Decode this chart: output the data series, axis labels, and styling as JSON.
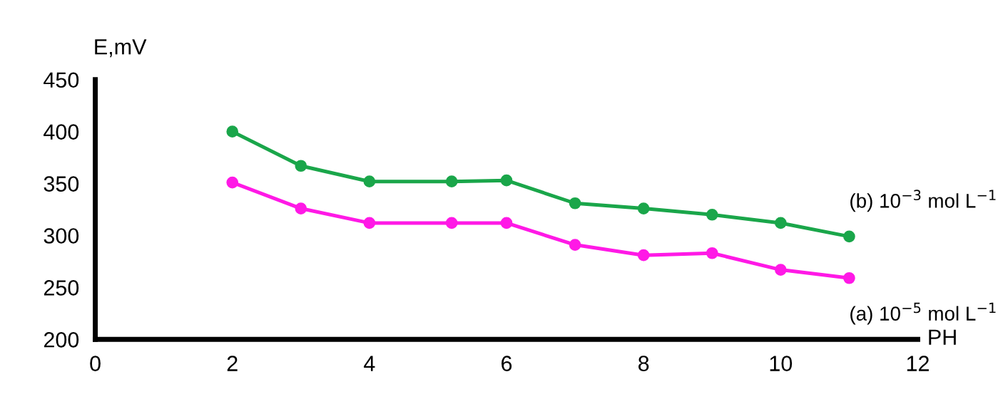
{
  "chart_data": {
    "type": "line",
    "xlabel": "PH",
    "ylabel": "E,mV",
    "xlim": [
      0,
      12
    ],
    "xticks": [
      0,
      2,
      4,
      6,
      8,
      10,
      12
    ],
    "ylim": [
      200,
      450
    ],
    "yticks": [
      200,
      250,
      300,
      350,
      400,
      450
    ],
    "grid": false,
    "legend": false,
    "marker": "circle",
    "line_style": "solid",
    "series": [
      {
        "name": "(b) 10$^{−3}$ mol L$^{−1}$",
        "color": "#1aa64a",
        "x": [
          2,
          3,
          4,
          5.2,
          6,
          7,
          8,
          9,
          10,
          11
        ],
        "values": [
          400,
          367,
          352,
          352,
          353,
          331,
          326,
          320,
          312,
          299
        ]
      },
      {
        "name": "(a) 10$^{−5}$ mol L$^{−1}$",
        "color": "#ff19e6",
        "x": [
          2,
          3,
          4,
          5.2,
          6,
          7,
          8,
          9,
          10,
          11
        ],
        "values": [
          351,
          326,
          312,
          312,
          312,
          291,
          281,
          283,
          267,
          259
        ]
      }
    ]
  }
}
